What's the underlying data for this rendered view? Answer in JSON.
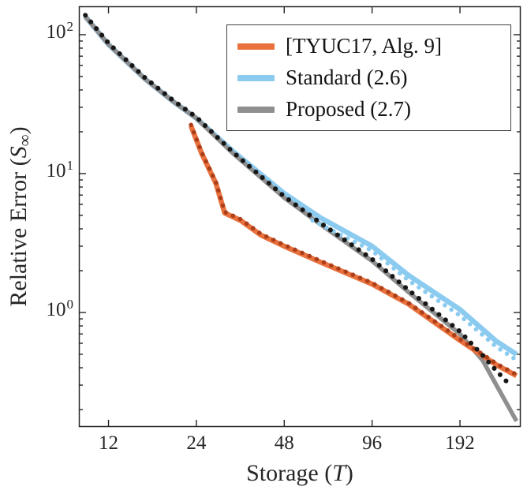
{
  "figure": {
    "background": "#ffffff",
    "axis_color": "#262626",
    "text_color": "#141414"
  },
  "chart_data": {
    "type": "line",
    "title": "",
    "x_scale": "log",
    "y_scale": "log",
    "xlim": [
      9.5,
      310
    ],
    "ylim": [
      0.15,
      160
    ],
    "xlabel_parts": {
      "pre": "Storage (",
      "italic": "T",
      "post": ")"
    },
    "ylabel_parts": {
      "pre": "Relative Error (",
      "italic": "S",
      "subscript": "∞",
      "post": ")"
    },
    "xticks": [
      {
        "value": 12,
        "label": "12"
      },
      {
        "value": 24,
        "label": "24"
      },
      {
        "value": 48,
        "label": "48"
      },
      {
        "value": 96,
        "label": "96"
      },
      {
        "value": 192,
        "label": "192"
      }
    ],
    "yticks": [
      {
        "value": 1,
        "base": "10",
        "exponent": "0"
      },
      {
        "value": 10,
        "base": "10",
        "exponent": "1"
      },
      {
        "value": 100,
        "base": "10",
        "exponent": "2"
      }
    ],
    "y_minor_ticks": [
      0.2,
      0.3,
      0.4,
      0.5,
      0.6,
      0.7,
      0.8,
      0.9,
      2,
      3,
      4,
      5,
      6,
      7,
      8,
      9,
      20,
      30,
      40,
      50,
      60,
      70,
      80,
      90
    ],
    "grid": false,
    "legend": {
      "position": "top-right",
      "entries": [
        {
          "label": "[TYUC17, Alg. 9]",
          "color": "#E8713D"
        },
        {
          "label": "Standard (2.6)",
          "color": "#8CCBF0"
        },
        {
          "label": "Proposed (2.7)",
          "color": "#8F8F8F"
        }
      ]
    },
    "series": [
      {
        "id": "standard-solid",
        "name": "Standard (2.6)",
        "color": "#8CCBF0",
        "line": "solid",
        "width": 6.5,
        "in_legend": true,
        "x": [
          10,
          12,
          16,
          20,
          24,
          32,
          48,
          64,
          96,
          128,
          192,
          256,
          300
        ],
        "y": [
          135,
          85,
          48,
          33,
          25,
          14.5,
          7.2,
          4.8,
          3.0,
          1.85,
          1.05,
          0.62,
          0.5
        ]
      },
      {
        "id": "proposed-solid",
        "name": "Proposed (2.7)",
        "color": "#8F8F8F",
        "line": "solid",
        "width": 5.5,
        "in_legend": true,
        "x": [
          10,
          12,
          16,
          20,
          24,
          32,
          48,
          64,
          96,
          128,
          192,
          230,
          256,
          300
        ],
        "y": [
          135,
          85,
          48,
          33,
          25,
          14.0,
          6.7,
          4.3,
          2.35,
          1.4,
          0.7,
          0.45,
          0.3,
          0.165
        ]
      },
      {
        "id": "tyuc17-solid",
        "name": "[TYUC17, Alg. 9]",
        "color": "#E8713D",
        "line": "solid",
        "width": 6.5,
        "in_legend": true,
        "x": [
          23,
          25,
          28,
          30,
          34,
          40,
          48,
          64,
          96,
          128,
          192,
          256,
          300
        ],
        "y": [
          22,
          14,
          8.5,
          5.2,
          4.6,
          3.6,
          3.0,
          2.3,
          1.6,
          1.15,
          0.63,
          0.42,
          0.35
        ]
      },
      {
        "id": "standard-dotted",
        "name": "Standard (2.6) dotted",
        "color": "#8CCBF0",
        "line": "dotted",
        "width": 5.5,
        "in_legend": false,
        "x": [
          60,
          96,
          128,
          192,
          256,
          300
        ],
        "y": [
          4.6,
          2.78,
          1.7,
          0.95,
          0.565,
          0.455
        ]
      },
      {
        "id": "tyuc17-dotted",
        "name": "[TYUC17, Alg. 9] dotted",
        "color": "#AC3E19",
        "line": "dotted",
        "width": 5.5,
        "in_legend": false,
        "x": [
          23,
          25,
          28,
          30,
          34,
          40,
          48,
          64,
          96,
          128,
          192,
          256,
          300
        ],
        "y": [
          22.4,
          14.3,
          8.66,
          5.3,
          4.69,
          3.67,
          3.06,
          2.35,
          1.63,
          1.17,
          0.643,
          0.428,
          0.357
        ]
      },
      {
        "id": "proposed-dotted",
        "name": "Proposed (2.7) dotted",
        "color": "#161616",
        "line": "dotted",
        "width": 6,
        "in_legend": false,
        "x": [
          10,
          12,
          16,
          20,
          24,
          32,
          48,
          64,
          96,
          128,
          192,
          230,
          256,
          285
        ],
        "y": [
          138,
          87,
          49,
          33.6,
          25.5,
          14.3,
          6.85,
          4.4,
          2.42,
          1.45,
          0.73,
          0.49,
          0.38,
          0.3
        ]
      }
    ]
  }
}
